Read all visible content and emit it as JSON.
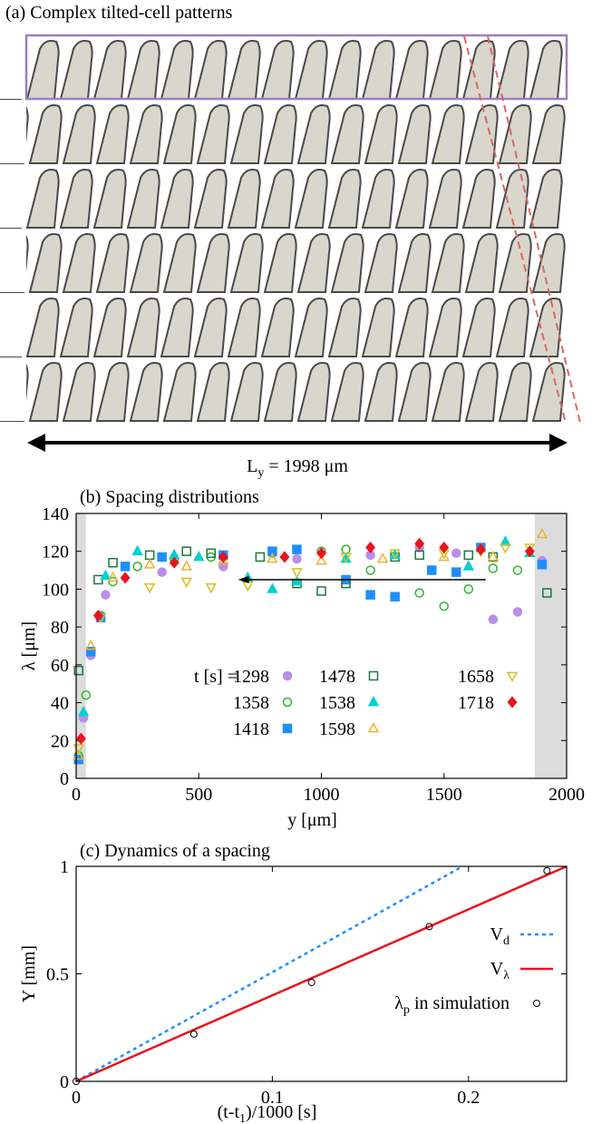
{
  "panel_a": {
    "title": "(a) Complex tilted-cell patterns",
    "length_label": [
      "L",
      "y",
      " = 1998 μm"
    ]
  },
  "chart_data": [
    {
      "type": "scatter",
      "title": "(b) Spacing distributions",
      "x_label": "y [μm]",
      "y_label": "λ [μm]",
      "xlim": [
        0,
        2000
      ],
      "ylim": [
        0,
        140
      ],
      "xticks": [
        0,
        500,
        1000,
        1500,
        2000
      ],
      "yticks": [
        0,
        20,
        40,
        60,
        80,
        100,
        120,
        140
      ],
      "legend_title": "t [s] =",
      "shaded_regions": [
        [
          0,
          40
        ],
        [
          1870,
          2000
        ]
      ],
      "arrow": {
        "from": [
          1670,
          105
        ],
        "to": [
          660,
          105
        ]
      },
      "series": [
        {
          "name": "1298",
          "color": "#b98ee8",
          "marker": "circle",
          "filled": true,
          "x": [
            10,
            30,
            60,
            120,
            200,
            350,
            600,
            900,
            1200,
            1400,
            1550,
            1700,
            1800,
            1900
          ],
          "values": [
            10,
            32,
            65,
            97,
            112,
            109,
            112,
            116,
            118,
            122,
            119,
            84,
            88,
            115
          ]
        },
        {
          "name": "1358",
          "color": "#2db42d",
          "marker": "circle",
          "filled": false,
          "x": [
            10,
            40,
            100,
            150,
            250,
            400,
            550,
            800,
            1000,
            1100,
            1200,
            1400,
            1500,
            1600,
            1700,
            1800
          ],
          "values": [
            12,
            44,
            86,
            104,
            112,
            116,
            117,
            119,
            120,
            121,
            110,
            98,
            91,
            100,
            111,
            110
          ]
        },
        {
          "name": "1418",
          "color": "#1e8fff",
          "marker": "square",
          "filled": true,
          "x": [
            10,
            60,
            100,
            200,
            350,
            600,
            800,
            900,
            1100,
            1200,
            1300,
            1450,
            1550,
            1650,
            1900
          ],
          "values": [
            10,
            67,
            85,
            112,
            117,
            118,
            120,
            121,
            105,
            97,
            96,
            110,
            109,
            122,
            113
          ]
        },
        {
          "name": "1478",
          "color": "#1a7a3a",
          "marker": "square",
          "filled": false,
          "x": [
            10,
            90,
            150,
            300,
            450,
            550,
            750,
            900,
            1000,
            1100,
            1300,
            1400,
            1600,
            1700,
            1920
          ],
          "values": [
            57,
            105,
            114,
            118,
            120,
            119,
            117,
            103,
            99,
            103,
            117,
            118,
            118,
            117,
            98
          ]
        },
        {
          "name": "1538",
          "color": "#00d0d0",
          "marker": "triangle",
          "filled": true,
          "x": [
            30,
            120,
            250,
            400,
            500,
            700,
            800,
            900,
            1100,
            1300,
            1600,
            1750,
            1850
          ],
          "values": [
            35,
            107,
            120,
            118,
            117,
            106,
            100,
            104,
            116,
            118,
            112,
            125,
            119
          ]
        },
        {
          "name": "1598",
          "color": "#f0b030",
          "marker": "triangle",
          "filled": false,
          "x": [
            10,
            60,
            150,
            300,
            450,
            600,
            800,
            1000,
            1250,
            1500,
            1700,
            1900
          ],
          "values": [
            12,
            70,
            106,
            113,
            112,
            115,
            116,
            115,
            116,
            117,
            117,
            129
          ]
        },
        {
          "name": "1658",
          "color": "#d4c020",
          "marker": "triangle-down",
          "filled": false,
          "x": [
            10,
            100,
            300,
            450,
            550,
            700,
            900,
            1100,
            1300,
            1500,
            1650,
            1750,
            1850
          ],
          "values": [
            16,
            85,
            101,
            104,
            101,
            102,
            109,
            117,
            119,
            119,
            120,
            122,
            122
          ]
        },
        {
          "name": "1718",
          "color": "#e8141e",
          "marker": "diamond",
          "filled": true,
          "x": [
            20,
            90,
            200,
            400,
            600,
            850,
            1000,
            1200,
            1400,
            1500,
            1650,
            1850
          ],
          "values": [
            21,
            86,
            106,
            114,
            117,
            117,
            119,
            122,
            124,
            122,
            121,
            120
          ]
        }
      ]
    },
    {
      "type": "line",
      "title": "(c) Dynamics of a spacing",
      "x_label": [
        "(t-t",
        "1",
        ")/1000 [s]"
      ],
      "y_label": "Y [mm]",
      "xlim": [
        0,
        0.25
      ],
      "ylim": [
        0,
        1
      ],
      "xticks": [
        0,
        0.1,
        0.2
      ],
      "yticks": [
        0,
        0.5,
        1
      ],
      "series": [
        {
          "name": [
            "V",
            "d"
          ],
          "color": "#1e8fff",
          "style": "dashed",
          "x": [
            0,
            0.197
          ],
          "values": [
            0,
            1
          ]
        },
        {
          "name": [
            "V",
            "λ"
          ],
          "color": "#e8141e",
          "style": "solid",
          "x": [
            0,
            0.25
          ],
          "values": [
            0,
            1
          ]
        },
        {
          "name": [
            "λ",
            "p",
            " in simulation"
          ],
          "color": "#000000",
          "style": "markers",
          "x": [
            0,
            0.06,
            0.12,
            0.18,
            0.24
          ],
          "values": [
            0,
            0.22,
            0.46,
            0.72,
            0.98
          ]
        }
      ]
    }
  ]
}
